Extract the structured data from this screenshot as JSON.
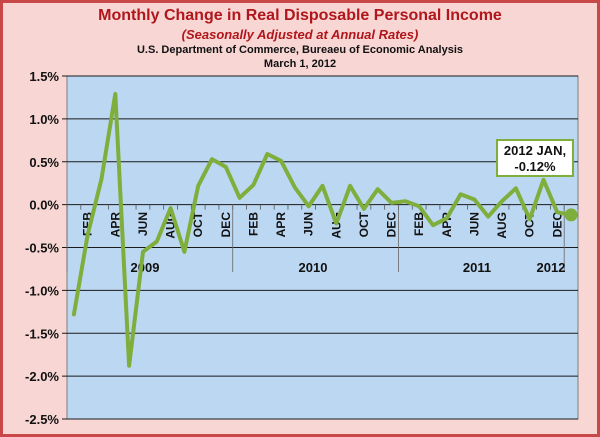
{
  "header": {
    "title": "Monthly Change in Real Disposable Personal Income",
    "subtitle": "(Seasonally Adjusted at Annual Rates)",
    "source": "U.S. Department of Commerce, Bureaeu of Economic Analysis",
    "date": "March 1, 2012"
  },
  "colors": {
    "frame": "#f7d6d4",
    "border": "#c8484a",
    "title": "#b0161b",
    "plot_area": "#bcd7f2",
    "series": "#7fae3c"
  },
  "chart_data": {
    "type": "line",
    "y_ticks": [
      "1.5%",
      "1.0%",
      "0.5%",
      "0.0%",
      "-0.5%",
      "-1.0%",
      "-1.5%",
      "-2.0%",
      "-2.5%"
    ],
    "ylim": [
      -2.5,
      1.5
    ],
    "month_labels": [
      "FEB",
      "APR",
      "JUN",
      "AUG",
      "OCT",
      "DEC",
      "FEB",
      "APR",
      "JUN",
      "AUG",
      "OCT",
      "DEC",
      "FEB",
      "APR",
      "JUN",
      "AUG",
      "OCT",
      "DEC"
    ],
    "year_labels": [
      "2009",
      "2010",
      "2011",
      "2012"
    ],
    "grid": true,
    "series": [
      {
        "x": [
          "2009-01",
          "2009-02",
          "2009-03",
          "2009-04",
          "2009-05",
          "2009-06",
          "2009-07",
          "2009-08",
          "2009-09",
          "2009-10",
          "2009-11",
          "2009-12",
          "2010-01",
          "2010-02",
          "2010-03",
          "2010-04",
          "2010-05",
          "2010-06",
          "2010-07",
          "2010-08",
          "2010-09",
          "2010-10",
          "2010-11",
          "2010-12",
          "2011-01",
          "2011-02",
          "2011-03",
          "2011-04",
          "2011-05",
          "2011-06",
          "2011-07",
          "2011-08",
          "2011-09",
          "2011-10",
          "2011-11",
          "2011-12",
          "2012-01"
        ],
        "values": [
          -1.28,
          -0.35,
          0.3,
          1.29,
          -1.88,
          -0.55,
          -0.43,
          -0.04,
          -0.55,
          0.22,
          0.53,
          0.44,
          0.08,
          0.23,
          0.59,
          0.51,
          0.2,
          -0.02,
          0.22,
          -0.22,
          0.22,
          -0.05,
          0.18,
          0.02,
          0.04,
          -0.02,
          -0.24,
          -0.16,
          0.12,
          0.06,
          -0.14,
          0.04,
          0.19,
          -0.17,
          0.29,
          -0.09,
          -0.12
        ]
      }
    ],
    "annotation": {
      "line1": "2012 JAN,",
      "line2": "-0.12%"
    }
  }
}
